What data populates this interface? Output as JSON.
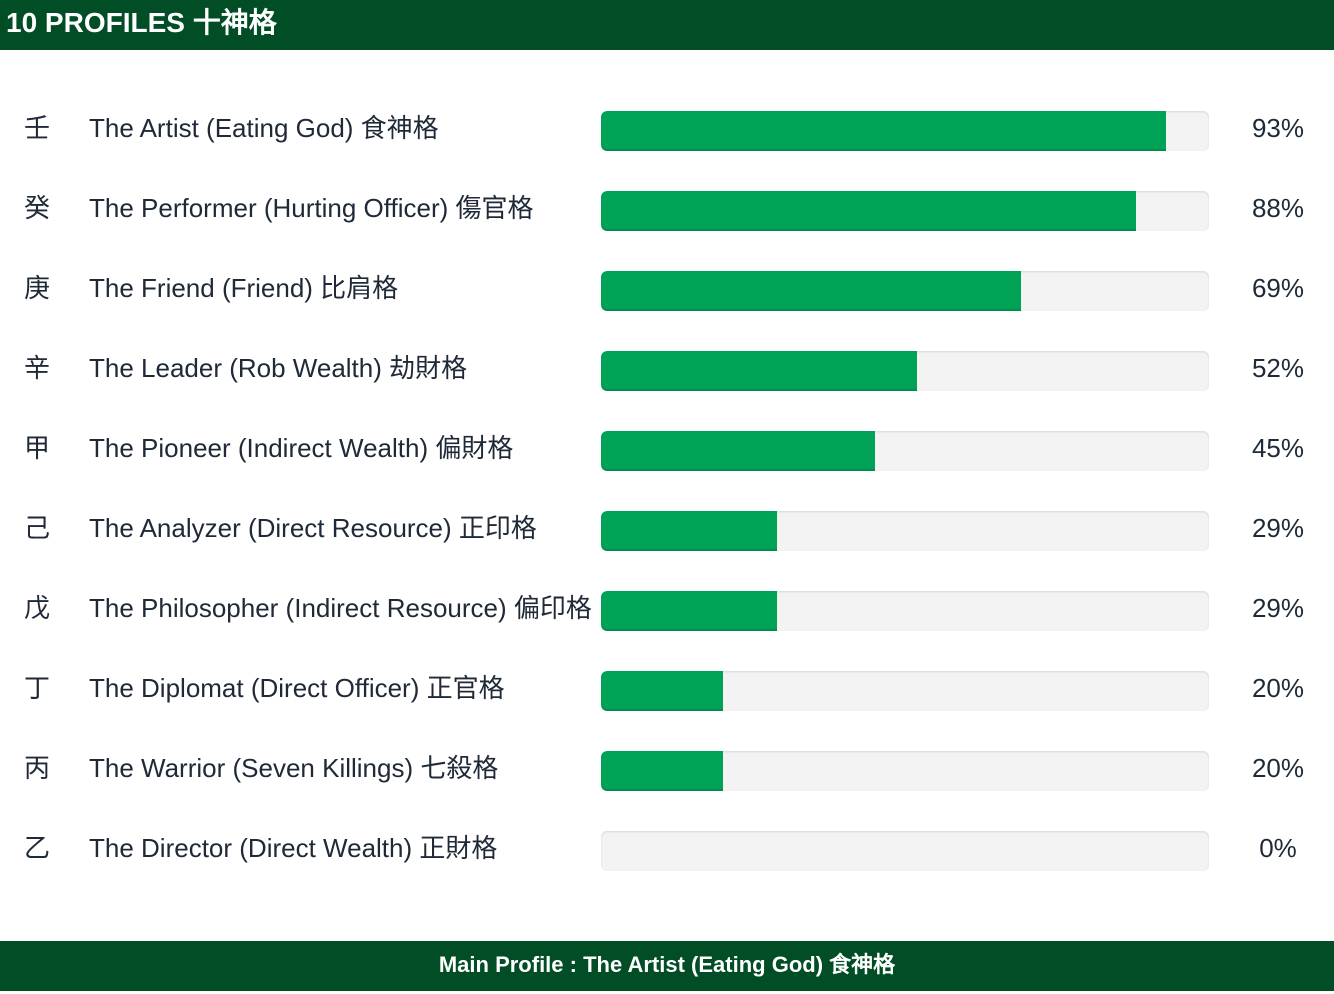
{
  "header": {
    "title": "10 PROFILES 十神格"
  },
  "footer": {
    "text": "Main Profile : The Artist (Eating God) 食神格"
  },
  "colors": {
    "header_bg": "#004d26",
    "bar_fill": "#00a356",
    "bar_track": "#f3f3f3"
  },
  "chart_data": {
    "type": "bar",
    "orientation": "horizontal",
    "title": "10 PROFILES 十神格",
    "xlim": [
      0,
      100
    ],
    "rows": [
      {
        "stem": "壬",
        "label": "The Artist (Eating God) 食神格",
        "value": 93,
        "value_label": "93%"
      },
      {
        "stem": "癸",
        "label": "The Performer (Hurting Officer) 傷官格",
        "value": 88,
        "value_label": "88%"
      },
      {
        "stem": "庚",
        "label": "The Friend (Friend) 比肩格",
        "value": 69,
        "value_label": "69%"
      },
      {
        "stem": "辛",
        "label": "The Leader (Rob Wealth) 劫財格",
        "value": 52,
        "value_label": "52%"
      },
      {
        "stem": "甲",
        "label": "The Pioneer (Indirect Wealth) 偏財格",
        "value": 45,
        "value_label": "45%"
      },
      {
        "stem": "己",
        "label": "The Analyzer (Direct Resource) 正印格",
        "value": 29,
        "value_label": "29%"
      },
      {
        "stem": "戊",
        "label": "The Philosopher (Indirect Resource) 偏印格",
        "value": 29,
        "value_label": "29%"
      },
      {
        "stem": "丁",
        "label": "The Diplomat (Direct Officer) 正官格",
        "value": 20,
        "value_label": "20%"
      },
      {
        "stem": "丙",
        "label": "The Warrior (Seven Killings) 七殺格",
        "value": 20,
        "value_label": "20%"
      },
      {
        "stem": "乙",
        "label": "The Director (Direct Wealth) 正財格",
        "value": 0,
        "value_label": "0%"
      }
    ]
  }
}
